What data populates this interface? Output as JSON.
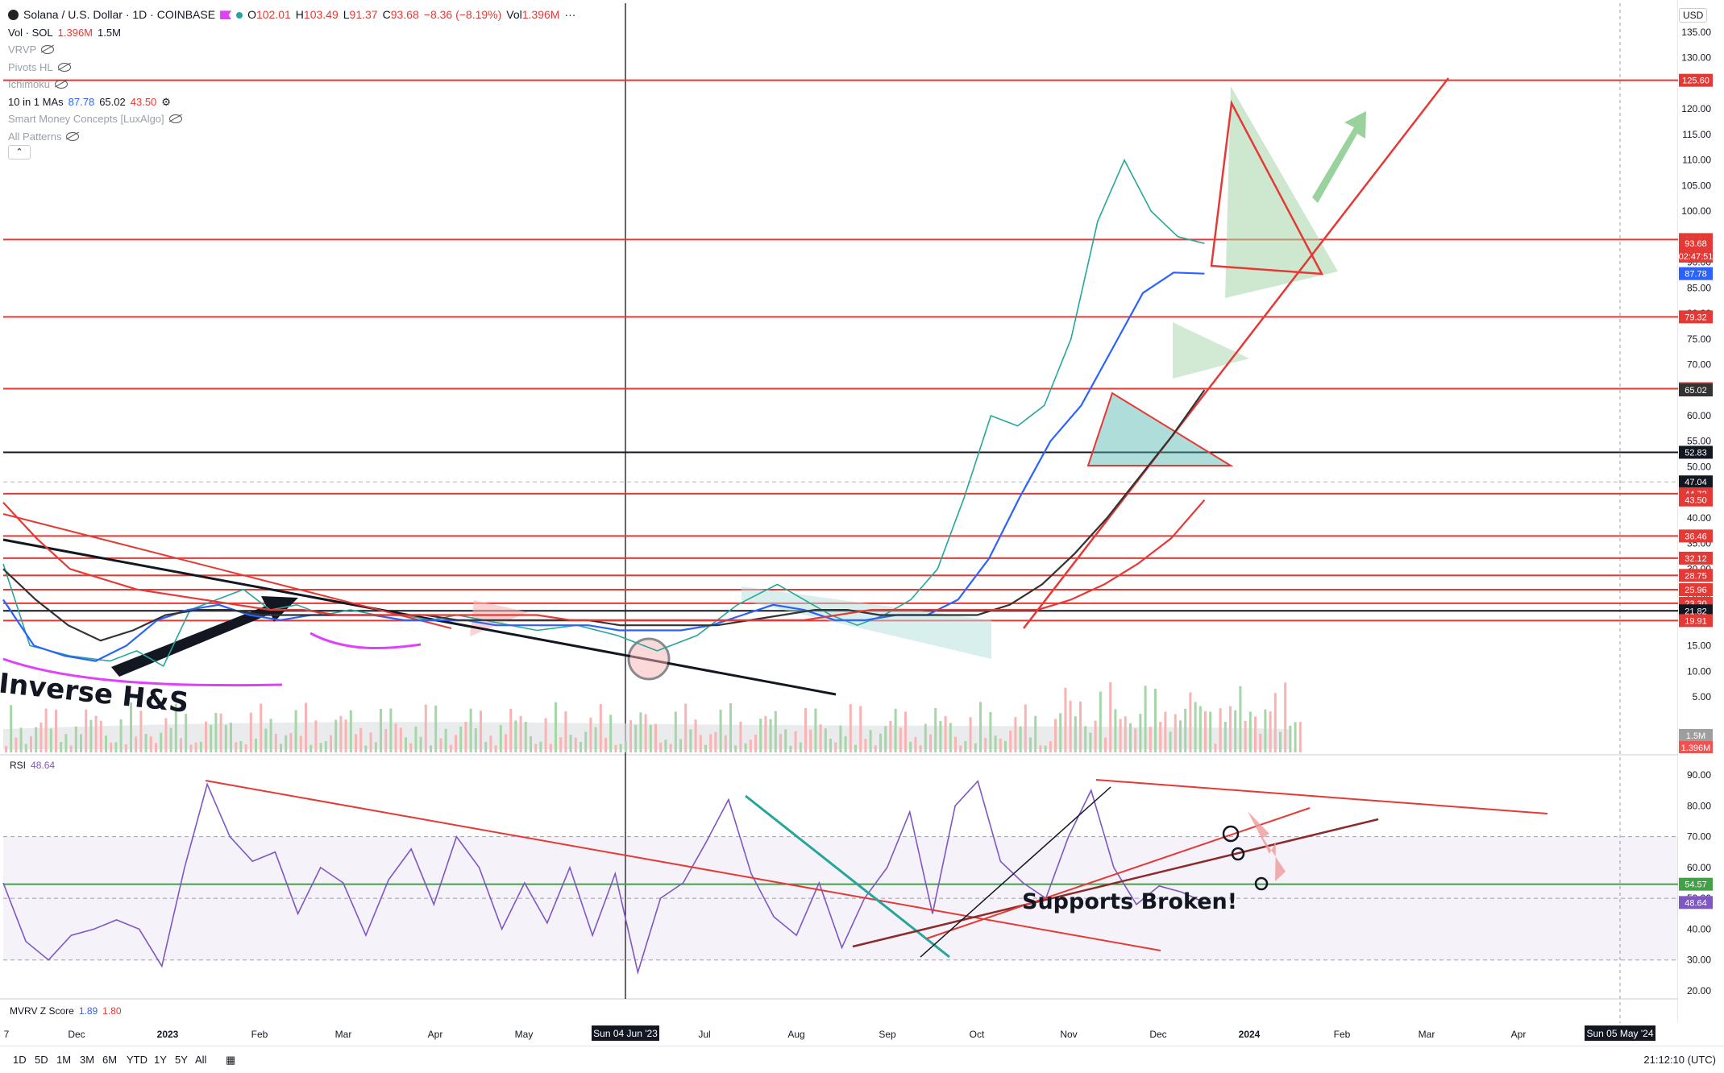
{
  "header": {
    "symbol": "Solana / U.S. Dollar · 1D · COINBASE",
    "ohlc": {
      "o": "102.01",
      "h": "103.49",
      "l": "91.37",
      "c": "93.68",
      "chg": "−8.36 (−8.19%)",
      "vol": "1.396M"
    },
    "labels": {
      "o": "O",
      "h": "H",
      "l": "L",
      "c": "C",
      "vol": "Vol"
    },
    "currency": "USD"
  },
  "indicators": [
    {
      "name": "Vol · SOL",
      "values": [
        "1.396M",
        "1.5M"
      ],
      "hidden": false
    },
    {
      "name": "VRVP",
      "hidden": true
    },
    {
      "name": "Pivots HL",
      "hidden": true
    },
    {
      "name": "Ichimoku",
      "hidden": true
    },
    {
      "name": "10 in 1 MAs",
      "values": [
        "87.78",
        "65.02",
        "43.50"
      ],
      "hidden": false
    },
    {
      "name": "Smart Money Concepts [LuxAlgo]",
      "hidden": true
    },
    {
      "name": "All Patterns",
      "hidden": true
    }
  ],
  "rsi_legend": {
    "name": "RSI",
    "value": "48.64"
  },
  "mvrv_legend": {
    "name": "MVRV Z Score",
    "values": [
      "1.89",
      "1.80"
    ]
  },
  "colors": {
    "up": "#26a69a",
    "down": "#ef5350",
    "ma_blue": "#2962ff",
    "ma_black": "#333333",
    "ma_red": "#e53935",
    "rsi": "#7e57c2",
    "level": "#e53935"
  },
  "chart_data": [
    {
      "type": "line",
      "title": "Solana / U.S. Dollar · 1D · COINBASE",
      "price_axis": [
        "135.00",
        "130.00",
        "125.00",
        "120.00",
        "115.00",
        "110.00",
        "105.00",
        "100.00",
        "95.00",
        "90.00",
        "85.00",
        "80.00",
        "75.00",
        "70.00",
        "65.00",
        "60.00",
        "55.00",
        "50.00",
        "45.00",
        "40.00",
        "35.00",
        "30.00",
        "25.00",
        "20.00",
        "15.00",
        "10.00",
        "5.00"
      ],
      "time_axis": [
        "7",
        "Dec",
        "2023",
        "Feb",
        "Mar",
        "Apr",
        "May",
        "Jul",
        "Aug",
        "Sep",
        "Oct",
        "Nov",
        "Dec",
        "2024",
        "Feb",
        "Mar",
        "Apr"
      ],
      "crosshair_date": "Sun 04 Jun '23",
      "future_date": "Sun 05 May '24",
      "ylim": [
        0,
        137
      ],
      "price_labels": [
        {
          "value": 125.6,
          "text": "125.60",
          "color": "#e53935"
        },
        {
          "value": 94.44,
          "text": "94.44",
          "color": "#e53935"
        },
        {
          "value": 93.68,
          "text": "93.68",
          "color": "#e53935"
        },
        {
          "value": 91.2,
          "text": "02:47:51",
          "color": "#e53935"
        },
        {
          "value": 87.78,
          "text": "87.78",
          "color": "#2962ff"
        },
        {
          "value": 79.32,
          "text": "79.32",
          "color": "#e53935"
        },
        {
          "value": 65.28,
          "text": "65.28",
          "color": "#e53935"
        },
        {
          "value": 65.02,
          "text": "65.02",
          "color": "#333333"
        },
        {
          "value": 52.83,
          "text": "52.83",
          "color": "#131722"
        },
        {
          "value": 47.04,
          "text": "47.04",
          "color": "#131722"
        },
        {
          "value": 44.72,
          "text": "44.72",
          "color": "#e53935"
        },
        {
          "value": 43.5,
          "text": "43.50",
          "color": "#e53935"
        },
        {
          "value": 36.46,
          "text": "36.46",
          "color": "#e53935"
        },
        {
          "value": 32.12,
          "text": "32.12",
          "color": "#e53935"
        },
        {
          "value": 28.75,
          "text": "28.75",
          "color": "#e53935"
        },
        {
          "value": 25.96,
          "text": "25.96",
          "color": "#e53935"
        },
        {
          "value": 23.3,
          "text": "23.30",
          "color": "#e53935"
        },
        {
          "value": 21.82,
          "text": "21.82",
          "color": "#131722"
        },
        {
          "value": 19.91,
          "text": "19.91",
          "color": "#e53935"
        }
      ],
      "horizontal_levels": [
        125.6,
        94.44,
        79.32,
        65.28,
        44.72,
        36.46,
        32.12,
        28.75,
        25.96,
        23.3,
        19.91
      ],
      "black_levels": [
        52.83,
        21.82
      ],
      "series": [
        {
          "name": "SOL",
          "x": [
            0,
            0.02,
            0.05,
            0.08,
            0.1,
            0.12,
            0.14,
            0.16,
            0.18,
            0.2,
            0.22,
            0.24,
            0.26,
            0.28,
            0.3,
            0.32,
            0.34,
            0.36,
            0.38,
            0.4,
            0.43,
            0.46,
            0.49,
            0.52,
            0.55,
            0.58,
            0.6,
            0.62,
            0.64,
            0.66,
            0.68,
            0.7,
            0.72,
            0.74,
            0.76,
            0.78,
            0.8,
            0.82,
            0.84,
            0.86,
            0.88,
            0.9
          ],
          "values": [
            31,
            15,
            13,
            12,
            14,
            11,
            22,
            24,
            26,
            22,
            23,
            21,
            22,
            21,
            21,
            20,
            21,
            20,
            19,
            18,
            19,
            17,
            14,
            17,
            23,
            27,
            24,
            21,
            19,
            21,
            24,
            30,
            44,
            60,
            58,
            62,
            75,
            98,
            110,
            100,
            95,
            93.68
          ]
        },
        {
          "name": "MA 87.78",
          "values": [
            24,
            15,
            13,
            12,
            15,
            20,
            22,
            23,
            21,
            20,
            21,
            21,
            21,
            20,
            20,
            20,
            19,
            19,
            19,
            19,
            18,
            18,
            18,
            19,
            21,
            23,
            22,
            20,
            20,
            21,
            21,
            24,
            32,
            44,
            55,
            62,
            73,
            84,
            88,
            87.78
          ]
        },
        {
          "name": "MA 65.02",
          "values": [
            30,
            24,
            19,
            16,
            18,
            21,
            22,
            22,
            21,
            21,
            21,
            21,
            21,
            21,
            20,
            20,
            20,
            20,
            20,
            19,
            19,
            19,
            19,
            20,
            21,
            22,
            22,
            21,
            21,
            21,
            21,
            23,
            27,
            33,
            40,
            48,
            56,
            65.02
          ]
        },
        {
          "name": "MA 43.50",
          "values": [
            43,
            36,
            30,
            28,
            26,
            25,
            24,
            23,
            22,
            22,
            21,
            21,
            21,
            21,
            21,
            21,
            21,
            20,
            20,
            20,
            20,
            20,
            20,
            20,
            20,
            21,
            22,
            22,
            22,
            22,
            22,
            22,
            24,
            27,
            31,
            36,
            43.5
          ]
        }
      ]
    },
    {
      "type": "line",
      "title": "RSI",
      "axis": [
        "90.00",
        "80.00",
        "70.00",
        "60.00",
        "50.00",
        "40.00",
        "30.00",
        "20.00"
      ],
      "ylim": [
        17,
        94
      ],
      "band": [
        30,
        70
      ],
      "price_labels": [
        {
          "value": 54.57,
          "text": "54.57",
          "color": "#43a047"
        },
        {
          "value": 48.64,
          "text": "48.64",
          "color": "#7e57c2"
        }
      ],
      "series": [
        {
          "name": "RSI",
          "values": [
            55,
            36,
            30,
            38,
            40,
            43,
            40,
            28,
            60,
            87,
            70,
            62,
            65,
            45,
            60,
            55,
            38,
            56,
            66,
            48,
            70,
            60,
            40,
            55,
            42,
            60,
            38,
            58,
            26,
            50,
            55,
            68,
            82,
            58,
            44,
            38,
            55,
            34,
            50,
            60,
            78,
            45,
            80,
            88,
            62,
            55,
            50,
            70,
            85,
            60,
            48,
            54,
            52,
            48.64
          ]
        }
      ]
    },
    {
      "type": "line",
      "title": "MVRV Z Score",
      "values": [
        "1.89",
        "1.80"
      ]
    }
  ],
  "annotations": {
    "inverse_hs": "Inverse H&S",
    "supports_broken": "Supports Broken!"
  },
  "volume_labels": {
    "v1": "1.5M",
    "v2": "1.396M"
  },
  "toolbar": {
    "timeframes": [
      "1D",
      "5D",
      "1M",
      "3M",
      "6M",
      "YTD",
      "1Y",
      "5Y",
      "All"
    ],
    "clock": "21:12:10 (UTC)"
  }
}
